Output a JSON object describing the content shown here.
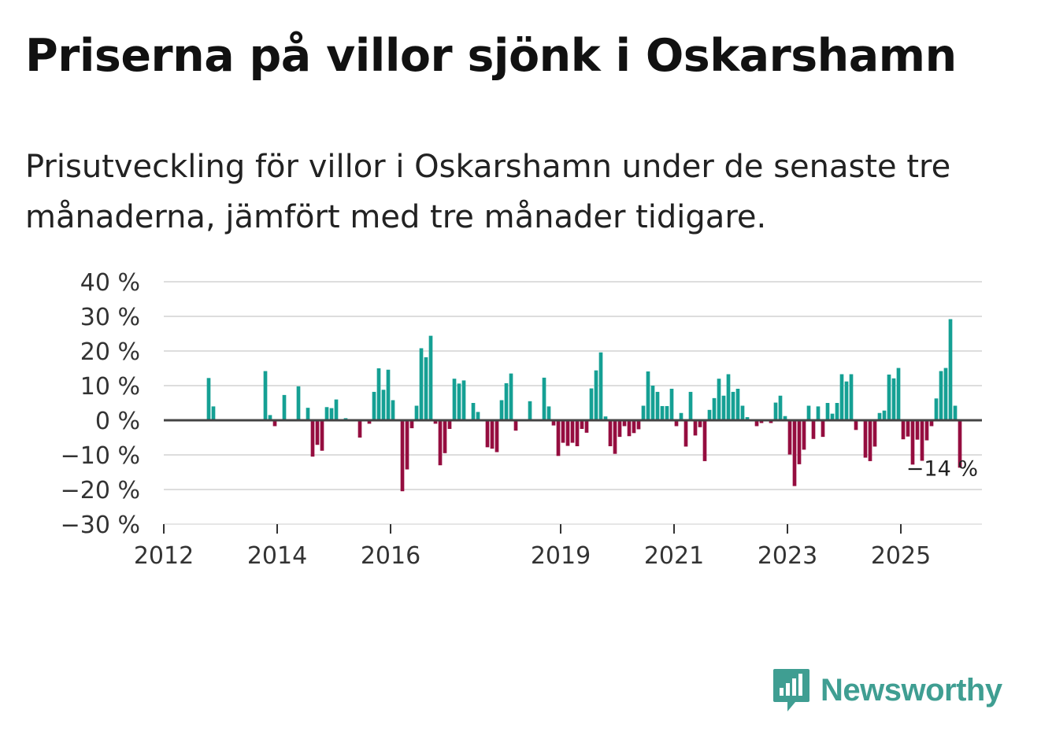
{
  "title": "Priserna på villor sjönk i Oskarshamn",
  "subtitle": "Prisutveckling för villor i Oskarshamn under de senaste tre månaderna, jämfört med tre månader tidigare.",
  "brand": {
    "name": "Newsworthy",
    "color": "#3f9e92",
    "icon": "newsworthy-logo-icon"
  },
  "colors": {
    "positive": "#15a094",
    "negative": "#950d3f",
    "zero_line": "#444444",
    "grid": "#dddddd"
  },
  "chart_data": {
    "type": "bar",
    "title": "Priserna på villor sjönk i Oskarshamn",
    "xlabel": "",
    "ylabel": "",
    "ylim": [
      -30,
      40
    ],
    "yticks": [
      40,
      30,
      20,
      10,
      0,
      -10,
      -20,
      -30
    ],
    "ytick_labels": [
      "40 %",
      "30 %",
      "20 %",
      "10 %",
      "0 %",
      "−10 %",
      "−20 %",
      "−30 %"
    ],
    "xticks": [
      2012,
      2014,
      2016,
      2019,
      2021,
      2023,
      2025
    ],
    "xtick_labels": [
      "2012",
      "2014",
      "2016",
      "2019",
      "2021",
      "2023",
      "2025"
    ],
    "x_start": 2012.0,
    "months_per_bar": 1,
    "values": [
      0,
      0,
      0,
      0,
      0,
      0,
      0,
      0,
      0,
      12.2,
      4,
      0,
      0,
      0,
      0,
      0,
      0,
      0,
      0,
      0,
      0,
      14.2,
      1.5,
      -1.7,
      0,
      7.3,
      0,
      0,
      9.8,
      0,
      3.6,
      -10.5,
      -7.1,
      -8.8,
      3.8,
      3.5,
      6,
      0,
      0.6,
      0,
      0,
      -5,
      0,
      -1,
      8.2,
      15,
      8.8,
      14.6,
      5.8,
      0,
      -20.5,
      -14.2,
      -2.3,
      4.2,
      20.8,
      18.2,
      24.4,
      -1,
      -13,
      -9.5,
      -2.5,
      12,
      10.6,
      11.5,
      0,
      5,
      2.4,
      0,
      -7.8,
      -8.2,
      -9.2,
      5.8,
      10.7,
      13.5,
      -3,
      0,
      0,
      5.5,
      0,
      0,
      12.3,
      4,
      -1.5,
      -10.3,
      -6.5,
      -7.4,
      -6.5,
      -7.5,
      -2.5,
      -3.6,
      9.2,
      14.4,
      19.6,
      1.1,
      -7.5,
      -9.7,
      -4.8,
      -1.7,
      -4.6,
      -3.7,
      -2.6,
      4.2,
      14.1,
      10,
      8.2,
      4.1,
      4.1,
      9.1,
      -1.7,
      2.1,
      -7.6,
      8.2,
      -4.4,
      -2,
      -11.8,
      3,
      6.4,
      12,
      7.1,
      13.3,
      8.2,
      9.1,
      4.2,
      0.9,
      0,
      -1.7,
      -0.8,
      0,
      -0.8,
      5.1,
      7.1,
      1.2,
      -9.9,
      -19,
      -12.7,
      -8.5,
      4.2,
      -5.4,
      4,
      -4.8,
      5,
      1.9,
      5,
      13.3,
      11.2,
      13.3,
      -2.8,
      0,
      -10.8,
      -11.8,
      -7.6,
      2.1,
      2.8,
      13.2,
      12.1,
      15.1,
      -5.5,
      -4.7,
      -12.8,
      -5.6,
      -11.7,
      -5.8,
      -1.7,
      6.3,
      14.2,
      15.1,
      29.2,
      4.2,
      -13.7
    ],
    "annotation": {
      "label": "−14 %",
      "value": -14
    }
  }
}
